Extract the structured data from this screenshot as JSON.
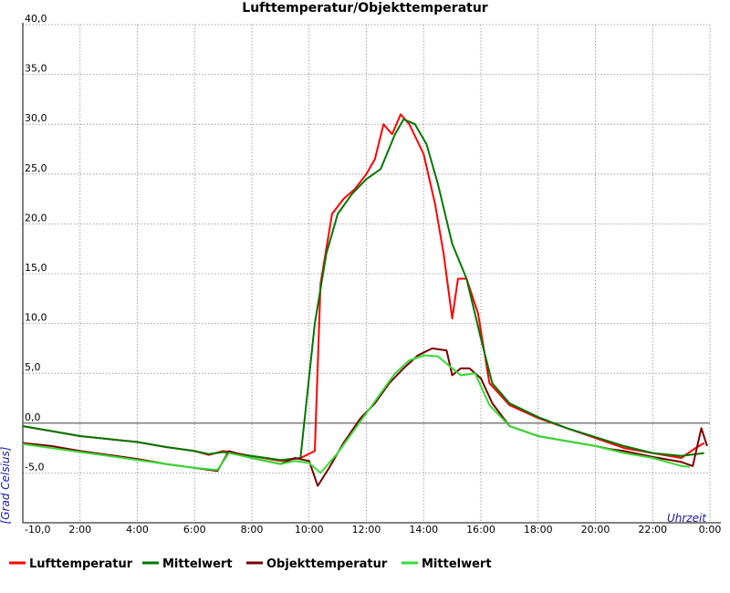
{
  "chart_data": {
    "type": "line",
    "title": "Lufttemperatur/Objekttemperatur",
    "xlabel": "Uhrzeit",
    "ylabel": "[Grad Celsius]",
    "xlim": [
      0,
      24
    ],
    "ylim": [
      -10,
      40
    ],
    "x_tick_values": [
      2,
      4,
      6,
      8,
      10,
      12,
      14,
      16,
      18,
      20,
      22,
      24
    ],
    "x_tick_labels": [
      "2:00",
      "4:00",
      "6:00",
      "8:00",
      "10:00",
      "12:00",
      "14:00",
      "16:00",
      "18:00",
      "20:00",
      "22:00",
      "0:00"
    ],
    "y_tick_values": [
      -10,
      -5,
      0,
      5,
      10,
      15,
      20,
      25,
      30,
      35,
      40
    ],
    "y_tick_labels": [
      "-10,0",
      "-5,0",
      "0,0",
      "5,0",
      "10,0",
      "15,0",
      "20,0",
      "25,0",
      "30,0",
      "35,0",
      "40,0"
    ],
    "grid": true,
    "zero_line": 0,
    "legend_position": "bottom",
    "series": [
      {
        "name": "Lufttemperatur",
        "color": "#ff0000",
        "x": [
          0,
          1,
          2,
          3,
          4,
          5,
          6,
          6.5,
          7,
          8,
          9,
          9.7,
          10.2,
          10.4,
          10.8,
          11.2,
          11.6,
          12,
          12.3,
          12.6,
          12.9,
          13.2,
          13.5,
          14,
          14.4,
          14.7,
          15,
          15.2,
          15.5,
          15.9,
          16.3,
          17,
          18,
          19,
          20,
          21,
          22,
          23,
          23.5,
          23.8
        ],
        "values": [
          -0.3,
          -0.8,
          -1.3,
          -1.6,
          -1.9,
          -2.4,
          -2.8,
          -3.2,
          -2.8,
          -3.3,
          -3.8,
          -3.5,
          -2.8,
          14,
          21,
          22.5,
          23.5,
          25,
          26.5,
          30,
          29,
          31,
          30,
          27,
          22,
          17,
          10.5,
          14.5,
          14.5,
          11,
          4,
          1.8,
          0.5,
          -0.5,
          -1.5,
          -2.5,
          -3.0,
          -3.5,
          -2.5,
          -2.0
        ]
      },
      {
        "name": "Mittelwert",
        "color": "#007700",
        "x": [
          0,
          1,
          2,
          3,
          4,
          5,
          6,
          6.5,
          7,
          8,
          9,
          9.7,
          10.2,
          10.6,
          11,
          11.5,
          12,
          12.5,
          13,
          13.3,
          13.7,
          14.1,
          14.5,
          15,
          15.5,
          16,
          16.4,
          17,
          18,
          19,
          20,
          21,
          22,
          23,
          23.8
        ],
        "values": [
          -0.3,
          -0.8,
          -1.3,
          -1.6,
          -1.9,
          -2.4,
          -2.8,
          -3.1,
          -2.9,
          -3.3,
          -3.7,
          -3.5,
          10,
          17,
          21,
          23,
          24.5,
          25.5,
          29,
          30.5,
          30,
          28,
          24,
          18,
          14.5,
          8.5,
          4,
          2,
          0.6,
          -0.5,
          -1.4,
          -2.3,
          -3.0,
          -3.3,
          -3.0
        ]
      },
      {
        "name": "Objekttemperatur",
        "color": "#7a0000",
        "x": [
          0,
          1,
          2,
          3,
          4,
          5,
          6,
          6.8,
          7.2,
          8,
          9,
          9.5,
          10,
          10.3,
          10.7,
          11.2,
          11.8,
          12.3,
          12.8,
          13.3,
          13.8,
          14.3,
          14.8,
          15,
          15.3,
          15.6,
          16,
          16.4,
          17,
          18,
          19,
          20,
          20.5,
          21,
          22,
          23,
          23.4,
          23.7,
          23.9
        ],
        "values": [
          -2,
          -2.3,
          -2.8,
          -3.2,
          -3.6,
          -4.1,
          -4.5,
          -4.8,
          -2.8,
          -3.5,
          -4.1,
          -3.5,
          -3.8,
          -6.3,
          -4.5,
          -2,
          0.5,
          2,
          4,
          5.5,
          6.8,
          7.5,
          7.3,
          4.8,
          5.5,
          5.5,
          4.5,
          2,
          -0.3,
          -1.3,
          -1.8,
          -2.3,
          -2.6,
          -2.8,
          -3.4,
          -3.9,
          -4.3,
          -0.5,
          -2.3
        ]
      },
      {
        "name": "Mittelwert",
        "color": "#33dd33",
        "x": [
          0,
          1,
          2,
          3,
          4,
          5,
          6,
          6.8,
          7.2,
          8,
          9,
          9.5,
          10,
          10.4,
          11,
          11.5,
          12,
          12.5,
          13,
          13.5,
          14,
          14.5,
          15,
          15.3,
          15.8,
          16.3,
          17,
          18,
          19,
          20,
          21,
          22,
          23,
          23.3
        ],
        "values": [
          -2.1,
          -2.5,
          -2.9,
          -3.3,
          -3.7,
          -4.1,
          -4.5,
          -4.7,
          -3.0,
          -3.5,
          -4.1,
          -3.8,
          -4.0,
          -5.0,
          -3.0,
          -1.0,
          1,
          3,
          5,
          6.3,
          6.8,
          6.7,
          5.5,
          4.8,
          5.0,
          1.8,
          -0.3,
          -1.3,
          -1.8,
          -2.3,
          -3.0,
          -3.5,
          -4.3,
          -4.4
        ]
      }
    ]
  }
}
